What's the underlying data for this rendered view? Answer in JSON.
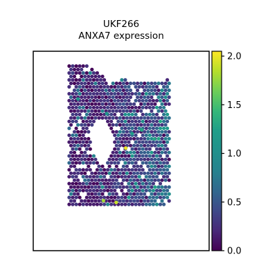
{
  "chart_data": {
    "type": "scatter",
    "subtype": "spatial spot map (hexagonal grid), colored by expression",
    "title": "UKF266",
    "subtitle": "ANXA7 expression",
    "xlabel": "",
    "ylabel": "",
    "grid": false,
    "legend": "colorbar-right",
    "colorbar": {
      "colormap": "viridis",
      "vmin": 0.0,
      "vmax": 2.05,
      "ticks": [
        0.0,
        0.5,
        1.0,
        1.5,
        2.0
      ],
      "tick_labels": [
        "0.0",
        "0.5",
        "1.0",
        "1.5",
        "2.0"
      ]
    },
    "colors": {
      "background": "#ffffff",
      "frame": "#000000",
      "low": "#440154",
      "mid": "#21918c",
      "high": "#fde725"
    },
    "tissue_outline": {
      "x_range": [
        0.0,
        1.0
      ],
      "y_range": [
        0.0,
        1.0
      ],
      "left": [
        [
          0.06,
          1.0
        ],
        [
          0.04,
          0.8
        ],
        [
          0.05,
          0.5
        ],
        [
          0.07,
          0.25
        ],
        [
          0.12,
          0.05
        ],
        [
          0.16,
          0.0
        ]
      ],
      "top": [
        [
          0.06,
          1.0
        ],
        [
          0.27,
          0.98
        ],
        [
          0.36,
          0.93
        ],
        [
          0.44,
          0.88
        ],
        [
          0.5,
          0.9
        ],
        [
          0.65,
          0.88
        ],
        [
          0.8,
          0.9
        ],
        [
          0.85,
          0.85
        ]
      ],
      "right": [
        [
          0.85,
          0.85
        ],
        [
          0.9,
          0.7
        ],
        [
          0.93,
          0.56
        ],
        [
          0.88,
          0.45
        ],
        [
          0.85,
          0.25
        ],
        [
          0.8,
          0.2
        ]
      ],
      "bottom": [
        [
          0.8,
          0.2
        ],
        [
          0.6,
          0.18
        ],
        [
          0.45,
          0.13
        ],
        [
          0.3,
          0.1
        ],
        [
          0.2,
          0.03
        ],
        [
          0.16,
          0.0
        ]
      ],
      "notch": [
        [
          0.35,
          0.68
        ],
        [
          0.3,
          0.62
        ],
        [
          0.3,
          0.5
        ],
        [
          0.38,
          0.42
        ]
      ]
    },
    "high_expression_spots": [
      {
        "x": 0.52,
        "y": 0.52,
        "value": 2.0
      },
      {
        "x": 0.38,
        "y": 0.23,
        "value": 1.8
      },
      {
        "x": 0.46,
        "y": 0.22,
        "value": 1.9
      },
      {
        "x": 0.56,
        "y": 0.6,
        "value": 1.2
      },
      {
        "x": 0.62,
        "y": 0.62,
        "value": 1.3
      },
      {
        "x": 0.7,
        "y": 0.57,
        "value": 1.3
      },
      {
        "x": 0.4,
        "y": 0.71,
        "value": 1.1
      },
      {
        "x": 0.22,
        "y": 0.79,
        "value": 1.1
      }
    ],
    "expression_pattern": "values mostly 0.0-0.6; left half of tissue predominantly near 0.0; right half more spots around 0.6-1.2"
  }
}
